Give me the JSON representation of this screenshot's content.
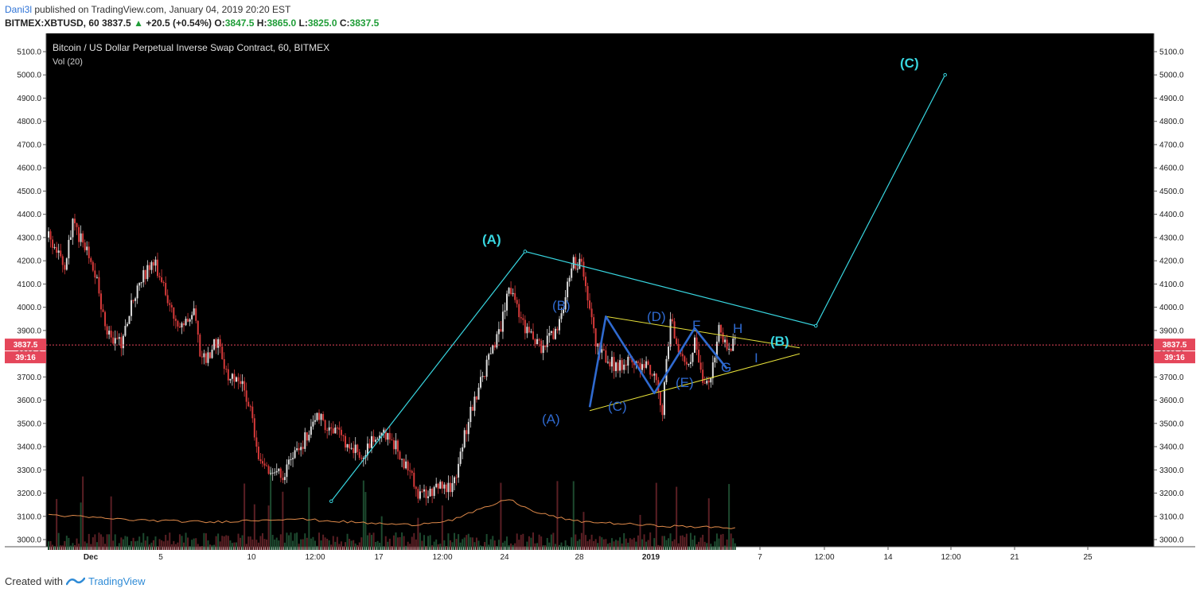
{
  "header": {
    "author": "Dani3l",
    "published": " published on TradingView.com, January 04, 2019 20:20 EST",
    "symbol": "BITMEX:XBTUSD, 60",
    "last": "3837.5",
    "change": "+20.5 (+0.54%)",
    "o_label": "O:",
    "o_value": "3847.5",
    "h_label": "H:",
    "h_value": "3865.0",
    "l_label": "L:",
    "l_value": "3825.0",
    "c_label": "C:",
    "c_value": "3837.5",
    "up_icon": "triangle-up-icon"
  },
  "footer": {
    "created_with": "Created with",
    "brand": "TradingView",
    "logo_icon": "tradingview-logo-icon"
  },
  "colors": {
    "background": "#000000",
    "candle_up": "#dcdcdc",
    "candle_down": "#d63a3a",
    "wave_cyan": "#38d6e0",
    "wave_blue": "#2f6ad0",
    "triangle_yellow": "#e8e23a",
    "volume_ma": "#e08a4a",
    "price_tag": "#e5465a"
  },
  "chart_data": {
    "type": "candlestick",
    "title": "Bitcoin / US Dollar Perpetual Inverse Swap Contract, 60, BITMEX",
    "indicator": "Vol (20)",
    "ylim": [
      2970,
      5175
    ],
    "y_ticks": [
      "5100.0",
      "5000.0",
      "4900.0",
      "4800.0",
      "4700.0",
      "4600.0",
      "4500.0",
      "4400.0",
      "4300.0",
      "4200.0",
      "4100.0",
      "4000.0",
      "3900.0",
      "3800.0",
      "3700.0",
      "3600.0",
      "3500.0",
      "3400.0",
      "3300.0",
      "3200.0",
      "3100.0",
      "3000.0"
    ],
    "x_ticks": [
      "Dec",
      "5",
      "10",
      "12:00",
      "17",
      "12:00",
      "24",
      "28",
      "2019",
      "7",
      "12:00",
      "14",
      "12:00",
      "21",
      "25"
    ],
    "current_price": "3837.5",
    "countdown": "39:16",
    "close_path": [
      [
        0,
        4300
      ],
      [
        2,
        4170
      ],
      [
        3,
        4360
      ],
      [
        5,
        4220
      ],
      [
        6,
        4120
      ],
      [
        7,
        3900
      ],
      [
        9,
        3840
      ],
      [
        11,
        4100
      ],
      [
        13,
        4200
      ],
      [
        15,
        4010
      ],
      [
        16,
        3900
      ],
      [
        18,
        3990
      ],
      [
        19,
        3760
      ],
      [
        21,
        3860
      ],
      [
        22,
        3720
      ],
      [
        24,
        3680
      ],
      [
        25,
        3560
      ],
      [
        26,
        3370
      ],
      [
        27,
        3300
      ],
      [
        29,
        3280
      ],
      [
        31,
        3380
      ],
      [
        33,
        3530
      ],
      [
        35,
        3480
      ],
      [
        37,
        3410
      ],
      [
        39,
        3360
      ],
      [
        41,
        3470
      ],
      [
        43,
        3400
      ],
      [
        45,
        3260
      ],
      [
        46,
        3180
      ],
      [
        48,
        3230
      ],
      [
        50,
        3220
      ],
      [
        52,
        3520
      ],
      [
        54,
        3730
      ],
      [
        56,
        3900
      ],
      [
        57,
        4110
      ],
      [
        59,
        3900
      ],
      [
        61,
        3820
      ],
      [
        63,
        3900
      ],
      [
        65,
        4190
      ],
      [
        66,
        4180
      ],
      [
        67,
        3970
      ],
      [
        68,
        3820
      ],
      [
        70,
        3750
      ],
      [
        72,
        3770
      ],
      [
        74,
        3750
      ],
      [
        75,
        3690
      ],
      [
        76,
        3560
      ],
      [
        77,
        3960
      ],
      [
        78,
        3820
      ],
      [
        79,
        3730
      ],
      [
        80,
        3850
      ],
      [
        81,
        3660
      ],
      [
        82,
        3720
      ],
      [
        83,
        3900
      ],
      [
        84,
        3840
      ],
      [
        85,
        3840
      ]
    ],
    "volume_ma_path": [
      [
        0,
        3107
      ],
      [
        10,
        3085
      ],
      [
        20,
        3075
      ],
      [
        30,
        3090
      ],
      [
        40,
        3070
      ],
      [
        45,
        3063
      ],
      [
        50,
        3085
      ],
      [
        55,
        3150
      ],
      [
        57,
        3175
      ],
      [
        60,
        3120
      ],
      [
        65,
        3080
      ],
      [
        70,
        3070
      ],
      [
        75,
        3060
      ],
      [
        80,
        3055
      ],
      [
        85,
        3050
      ]
    ],
    "annotations": {
      "wave_a": "(A)",
      "wave_b": "(B)",
      "wave_c": "(C)",
      "sub_a": "(A)",
      "sub_b": "(B)",
      "sub_c": "(C)",
      "sub_d": "(D)",
      "sub_e": "(E)",
      "f": "F",
      "g": "G",
      "h": "H",
      "i": "I"
    },
    "wave_cyan_points": [
      [
        35,
        3165
      ],
      [
        59,
        4240
      ],
      [
        95,
        3920
      ],
      [
        111,
        5000
      ]
    ],
    "wave_blue_points": [
      [
        67,
        3570
      ],
      [
        69,
        3960
      ],
      [
        75,
        3630
      ],
      [
        80,
        3910
      ],
      [
        84,
        3735
      ]
    ],
    "triangle_upper": [
      [
        69,
        3960
      ],
      [
        93,
        3825
      ]
    ],
    "triangle_lower": [
      [
        67,
        3555
      ],
      [
        93,
        3800
      ]
    ]
  }
}
